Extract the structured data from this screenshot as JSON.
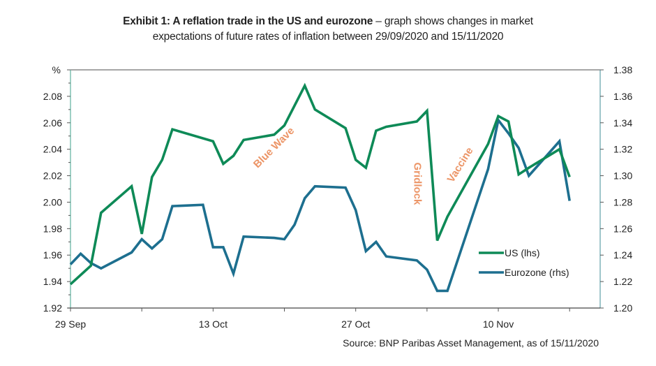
{
  "title": {
    "bold": "Exhibit 1: A reflation trade in the US and eurozone",
    "rest_line1": " – graph shows changes in market",
    "line2": "expectations of future rates of inflation between 29/09/2020 and 15/11/2020"
  },
  "source": "Source: BNP Paribas Asset Management, as of 15/11/2020",
  "chart_data": {
    "type": "line",
    "title": "Exhibit 1: A reflation trade in the US and eurozone",
    "xlabel": "",
    "ylabel": "%",
    "ylabel_right": "",
    "x_start_date": "29 Sep 2020",
    "x_range_days": [
      0,
      52
    ],
    "x_ticks": [
      {
        "day": 0,
        "label": "29 Sep"
      },
      {
        "day": 7,
        "label": ""
      },
      {
        "day": 14,
        "label": "13 Oct"
      },
      {
        "day": 21,
        "label": ""
      },
      {
        "day": 28,
        "label": "27 Oct"
      },
      {
        "day": 35,
        "label": ""
      },
      {
        "day": 42,
        "label": "10 Nov"
      },
      {
        "day": 49,
        "label": ""
      }
    ],
    "ylim_left": [
      1.92,
      2.1
    ],
    "ylim_right": [
      1.2,
      1.38
    ],
    "y_ticks_left": [
      "1.92",
      "1.94",
      "1.96",
      "1.98",
      "2.00",
      "2.02",
      "2.04",
      "2.06",
      "2.08"
    ],
    "y_ticks_right": [
      "1.20",
      "1.22",
      "1.24",
      "1.26",
      "1.28",
      "1.30",
      "1.32",
      "1.34",
      "1.36",
      "1.38"
    ],
    "grid": false,
    "legend_position": "bottom-right",
    "series": [
      {
        "name": "US (lhs)",
        "axis": "left",
        "color": "#0e8a57",
        "days": [
          0,
          2,
          3,
          6,
          7,
          8,
          9,
          10,
          14,
          15,
          16,
          17,
          20,
          21,
          23,
          24,
          27,
          28,
          29,
          30,
          31,
          34,
          35,
          36,
          37,
          41,
          42,
          43,
          44,
          45,
          48,
          49
        ],
        "values": [
          1.938,
          1.952,
          1.992,
          2.012,
          1.976,
          2.019,
          2.032,
          2.055,
          2.046,
          2.029,
          2.035,
          2.047,
          2.051,
          2.058,
          2.088,
          2.07,
          2.056,
          2.032,
          2.026,
          2.054,
          2.057,
          2.061,
          2.069,
          1.971,
          1.989,
          2.044,
          2.065,
          2.061,
          2.021,
          2.026,
          2.04,
          2.019
        ]
      },
      {
        "name": "Eurozone (rhs)",
        "axis": "right",
        "color": "#1d6f8f",
        "days": [
          0,
          1,
          2,
          3,
          6,
          7,
          8,
          9,
          10,
          13,
          14,
          15,
          16,
          17,
          20,
          21,
          22,
          23,
          24,
          27,
          28,
          29,
          30,
          31,
          34,
          35,
          36,
          37,
          41,
          42,
          43,
          44,
          45,
          48,
          49
        ],
        "values": [
          1.233,
          1.241,
          1.234,
          1.23,
          1.242,
          1.252,
          1.245,
          1.252,
          1.277,
          1.278,
          1.246,
          1.246,
          1.226,
          1.254,
          1.253,
          1.252,
          1.263,
          1.283,
          1.292,
          1.291,
          1.274,
          1.243,
          1.25,
          1.239,
          1.236,
          1.229,
          1.213,
          1.213,
          1.305,
          1.342,
          1.332,
          1.321,
          1.3,
          1.326,
          1.281
        ]
      }
    ],
    "annotations": [
      {
        "text": "Blue Wave",
        "day": 20,
        "value_left": 2.041,
        "rotation_deg": -45
      },
      {
        "text": "Gridlock",
        "day": 34,
        "value_left": 2.014,
        "rotation_deg": 90
      },
      {
        "text": "Vaccine",
        "day": 38.3,
        "value_left": 2.028,
        "rotation_deg": -58
      }
    ],
    "colors": {
      "annotation": "#ec9567",
      "left_axis": "#7fc1b2",
      "right_axis": "#5f9fa8",
      "frame": "#888888",
      "bottom_axis": "#444444"
    }
  }
}
